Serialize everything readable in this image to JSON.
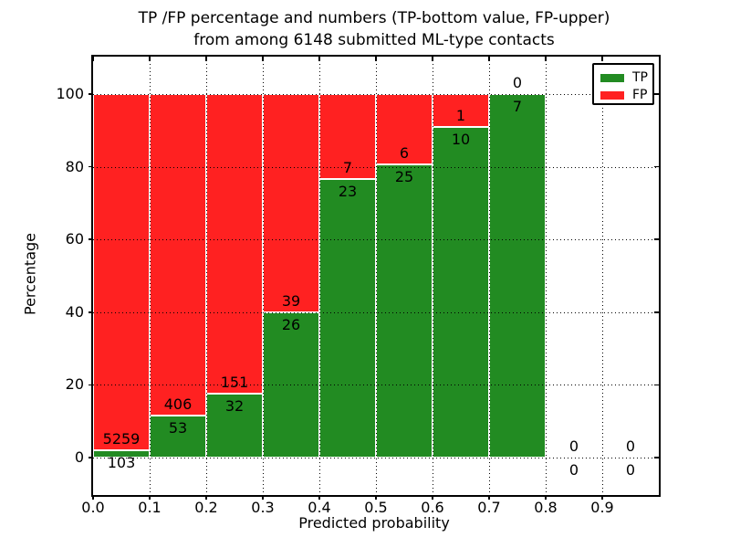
{
  "figure": {
    "title_line1": "TP /FP percentage and numbers (TP-bottom value, FP-upper)",
    "title_line2": "from among 6148 submitted ML-type contacts"
  },
  "axes": {
    "xlabel": "Predicted probability",
    "ylabel": "Percentage",
    "x_tick_labels": [
      "0.0",
      "0.1",
      "0.2",
      "0.3",
      "0.4",
      "0.5",
      "0.6",
      "0.7",
      "0.8",
      "0.9"
    ],
    "x_tick_values": [
      0.0,
      0.1,
      0.2,
      0.3,
      0.4,
      0.5,
      0.6,
      0.7,
      0.8,
      0.9
    ],
    "y_tick_labels": [
      "0",
      "20",
      "40",
      "60",
      "80",
      "100"
    ],
    "y_tick_values": [
      0,
      20,
      40,
      60,
      80,
      100
    ]
  },
  "legend": {
    "items": [
      {
        "label": "TP",
        "color": "#228b22"
      },
      {
        "label": "FP",
        "color": "#ff2121"
      }
    ]
  },
  "chart_data": {
    "type": "bar",
    "stacked": true,
    "normalized_to_percent": true,
    "title": "TP /FP percentage and numbers (TP-bottom value, FP-upper) from among 6148 submitted ML-type contacts",
    "total_contacts": 6148,
    "xlabel": "Predicted probability",
    "ylabel": "Percentage",
    "xlim": [
      0.0,
      1.0
    ],
    "ylim": [
      -10.3,
      110.3
    ],
    "grid": "dotted, both axes, drawn above bars",
    "legend_position": "upper right",
    "bin_edges": [
      0.0,
      0.1,
      0.2,
      0.3,
      0.4,
      0.5,
      0.6,
      0.7,
      0.8,
      0.9,
      1.0
    ],
    "categories": [
      "0.0-0.1",
      "0.1-0.2",
      "0.2-0.3",
      "0.3-0.4",
      "0.4-0.5",
      "0.5-0.6",
      "0.6-0.7",
      "0.7-0.8",
      "0.8-0.9",
      "0.9-1.0"
    ],
    "series": [
      {
        "name": "TP",
        "position": "bottom",
        "color": "#228b22",
        "counts": [
          103,
          53,
          32,
          26,
          23,
          25,
          10,
          7,
          0,
          0
        ],
        "percent": [
          1.92,
          11.55,
          17.49,
          40.0,
          76.67,
          80.65,
          90.91,
          100.0,
          0,
          0
        ]
      },
      {
        "name": "FP",
        "position": "top",
        "color": "#ff2121",
        "counts": [
          5259,
          406,
          151,
          39,
          7,
          6,
          1,
          0,
          0,
          0
        ],
        "percent": [
          98.08,
          88.45,
          82.51,
          60.0,
          23.33,
          19.35,
          9.09,
          0.0,
          0,
          0
        ]
      }
    ]
  }
}
